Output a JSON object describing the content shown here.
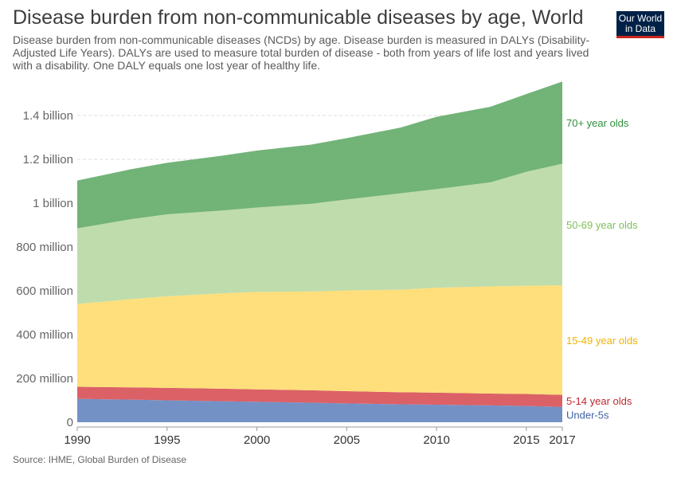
{
  "header": {
    "title": "Disease burden from non-communicable diseases by age, World",
    "subtitle": "Disease burden from non-communicable diseases (NCDs) by age. Disease burden is measured in DALYs (Disability-Adjusted Life Years). DALYs are used to measure total burden of disease - both from years of life lost and years lived with a disability. One DALY equals one lost year of healthy life."
  },
  "logo": {
    "line1": "Our World",
    "line2": "in Data"
  },
  "footer": {
    "source": "Source: IHME, Global Burden of Disease"
  },
  "chart_data": {
    "type": "area",
    "stacked": true,
    "title": "Disease burden from non-communicable diseases by age, World",
    "xlabel": "",
    "ylabel": "",
    "ylim": [
      0,
      1600000000
    ],
    "y_ticks": [
      {
        "value": 0,
        "label": "0"
      },
      {
        "value": 200000000,
        "label": "200 million"
      },
      {
        "value": 400000000,
        "label": "400 million"
      },
      {
        "value": 600000000,
        "label": "600 million"
      },
      {
        "value": 800000000,
        "label": "800 million"
      },
      {
        "value": 1000000000,
        "label": "1 billion"
      },
      {
        "value": 1200000000,
        "label": "1.2 billion"
      },
      {
        "value": 1400000000,
        "label": "1.4 billion"
      }
    ],
    "x_ticks": [
      1990,
      1995,
      2000,
      2005,
      2010,
      2015,
      2017
    ],
    "x": [
      1990,
      1993,
      1995,
      1998,
      2000,
      2003,
      2005,
      2008,
      2010,
      2013,
      2015,
      2017
    ],
    "grid": true,
    "legend": "labels at right end of each series",
    "series": [
      {
        "name": "Under-5s",
        "color": "#6d8bc3",
        "values": [
          107,
          103,
          100,
          96,
          93,
          89,
          86,
          82,
          80,
          77,
          74,
          70
        ]
      },
      {
        "name": "5-14 year olds",
        "color": "#d9585f",
        "values": [
          55,
          56,
          57,
          57,
          57,
          57,
          56,
          55,
          55,
          54,
          55,
          55
        ]
      },
      {
        "name": "15-49 year olds",
        "color": "#fedd74",
        "values": [
          378,
          403,
          418,
          435,
          445,
          451,
          460,
          468,
          479,
          489,
          494,
          500
        ]
      },
      {
        "name": "50-69 year olds",
        "color": "#bcdaa9",
        "values": [
          345,
          365,
          374,
          378,
          385,
          400,
          415,
          440,
          450,
          475,
          520,
          555
        ]
      },
      {
        "name": "70+ year olds",
        "color": "#6aaf70",
        "values": [
          218,
          228,
          235,
          250,
          260,
          270,
          280,
          300,
          330,
          345,
          355,
          375
        ]
      }
    ],
    "units_note": "values in millions of DALYs"
  }
}
